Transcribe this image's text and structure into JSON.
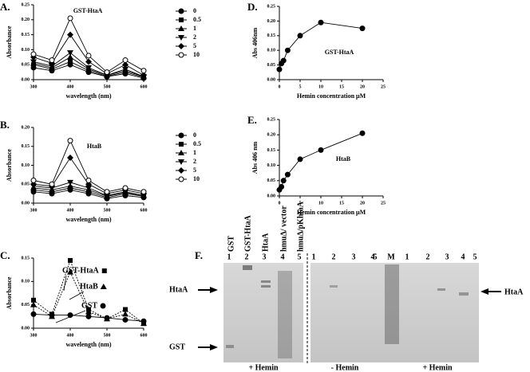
{
  "chart_data": [
    {
      "type": "line",
      "panel": "A.",
      "title": "GST-HtaA",
      "xlabel": "wavelength (nm)",
      "ylabel": "Absorbance",
      "x": [
        300,
        350,
        400,
        450,
        500,
        550,
        600
      ],
      "xlim": [
        300,
        600
      ],
      "xticks": [
        300,
        400,
        500,
        600
      ],
      "ylim": [
        0,
        0.25
      ],
      "yticks": [
        {
          "value": 0,
          "label": "0.00"
        },
        {
          "value": 0.05,
          "label": "0.05"
        },
        {
          "value": 0.1,
          "label": "0.10"
        },
        {
          "value": 0.15,
          "label": "0.15"
        },
        {
          "value": 0.2,
          "label": "0.20"
        },
        {
          "value": 0.25,
          "label": "0.25"
        }
      ],
      "legend": "right",
      "series": [
        {
          "name": "0",
          "color": "#000000",
          "marker": "circle",
          "values": [
            0.04,
            0.03,
            0.05,
            0.025,
            0.01,
            0.02,
            0.005
          ]
        },
        {
          "name": "0.5",
          "color": "#000000",
          "marker": "square",
          "values": [
            0.05,
            0.035,
            0.06,
            0.03,
            0.012,
            0.025,
            0.008
          ]
        },
        {
          "name": "1",
          "color": "#000000",
          "marker": "triangle",
          "values": [
            0.055,
            0.04,
            0.075,
            0.035,
            0.015,
            0.03,
            0.01
          ]
        },
        {
          "name": "2",
          "color": "#000000",
          "marker": "triangle-down",
          "values": [
            0.06,
            0.045,
            0.09,
            0.04,
            0.015,
            0.035,
            0.01
          ]
        },
        {
          "name": "5",
          "color": "#000000",
          "marker": "diamond",
          "values": [
            0.075,
            0.055,
            0.15,
            0.06,
            0.02,
            0.05,
            0.015
          ]
        },
        {
          "name": "10",
          "color": "#000000",
          "marker": "circle-open",
          "values": [
            0.085,
            0.065,
            0.205,
            0.08,
            0.025,
            0.065,
            0.03
          ]
        }
      ]
    },
    {
      "type": "line",
      "panel": "B.",
      "title": "HtaB",
      "xlabel": "wavelength (nm)",
      "ylabel": "Absorbance",
      "x": [
        300,
        350,
        400,
        450,
        500,
        550,
        600
      ],
      "xlim": [
        300,
        600
      ],
      "xticks": [
        300,
        400,
        500,
        600
      ],
      "ylim": [
        0,
        0.2
      ],
      "yticks": [
        {
          "value": 0,
          "label": "0.00"
        },
        {
          "value": 0.05,
          "label": "0.05"
        },
        {
          "value": 0.1,
          "label": "0.10"
        },
        {
          "value": 0.15,
          "label": "0.15"
        },
        {
          "value": 0.2,
          "label": "0.20"
        }
      ],
      "legend": "right",
      "series": [
        {
          "name": "0",
          "color": "#000000",
          "marker": "circle",
          "values": [
            0.03,
            0.025,
            0.035,
            0.025,
            0.012,
            0.02,
            0.015
          ]
        },
        {
          "name": "0.5",
          "color": "#000000",
          "marker": "square",
          "values": [
            0.035,
            0.03,
            0.04,
            0.03,
            0.015,
            0.025,
            0.018
          ]
        },
        {
          "name": "1",
          "color": "#000000",
          "marker": "triangle",
          "values": [
            0.04,
            0.035,
            0.045,
            0.035,
            0.018,
            0.028,
            0.02
          ]
        },
        {
          "name": "2",
          "color": "#000000",
          "marker": "triangle-down",
          "values": [
            0.045,
            0.04,
            0.055,
            0.04,
            0.02,
            0.03,
            0.02
          ]
        },
        {
          "name": "5",
          "color": "#000000",
          "marker": "diamond",
          "values": [
            0.05,
            0.045,
            0.12,
            0.05,
            0.025,
            0.035,
            0.025
          ]
        },
        {
          "name": "10",
          "color": "#000000",
          "marker": "circle-open",
          "values": [
            0.06,
            0.05,
            0.165,
            0.06,
            0.03,
            0.04,
            0.03
          ]
        }
      ]
    },
    {
      "type": "line",
      "panel": "C.",
      "xlabel": "wavelength (nm)",
      "ylabel": "Absorbance",
      "x": [
        300,
        350,
        400,
        450,
        500,
        550,
        600
      ],
      "xlim": [
        300,
        600
      ],
      "xticks": [
        300,
        400,
        500,
        600
      ],
      "ylim": [
        0,
        0.15
      ],
      "yticks": [
        {
          "value": 0,
          "label": "0.00"
        },
        {
          "value": 0.05,
          "label": "0.05"
        },
        {
          "value": 0.1,
          "label": "0.10"
        },
        {
          "value": 0.15,
          "label": "0.15"
        }
      ],
      "legend": "inline",
      "series": [
        {
          "name": "GST-HtaA",
          "color": "#000000",
          "marker": "square",
          "values": [
            0.06,
            0.03,
            0.145,
            0.04,
            0.02,
            0.04,
            0.01
          ]
        },
        {
          "name": "HtaB",
          "color": "#000000",
          "marker": "triangle",
          "values": [
            0.05,
            0.025,
            0.12,
            0.035,
            0.02,
            0.03,
            0.01
          ]
        },
        {
          "name": "GST",
          "color": "#000000",
          "marker": "circle",
          "values": [
            0.03,
            0.028,
            0.028,
            0.025,
            0.022,
            0.018,
            0.015
          ]
        }
      ]
    },
    {
      "type": "line",
      "panel": "D.",
      "title": "GST-HtaA",
      "xlabel": "Hemin concentration μM",
      "ylabel": "Abs 406nm",
      "x": [
        0,
        0.5,
        1,
        2,
        5,
        10,
        20
      ],
      "xlim": [
        0,
        25
      ],
      "xticks": [
        0,
        5,
        10,
        15,
        20,
        25
      ],
      "ylim": [
        0,
        0.25
      ],
      "yticks": [
        {
          "value": 0,
          "label": "0.00"
        },
        {
          "value": 0.05,
          "label": "0.05"
        },
        {
          "value": 0.1,
          "label": "0.10"
        },
        {
          "value": 0.15,
          "label": "0.15"
        },
        {
          "value": 0.2,
          "label": "0.20"
        },
        {
          "value": 0.25,
          "label": "0.25"
        }
      ],
      "series": [
        {
          "color": "#000000",
          "marker": "circle",
          "values": [
            0.035,
            0.055,
            0.065,
            0.1,
            0.15,
            0.195,
            0.175
          ]
        }
      ]
    },
    {
      "type": "line",
      "panel": "E.",
      "title": "HtaB",
      "xlabel": "Hemin concentration μM",
      "ylabel": "Abs 406 nm",
      "x": [
        0,
        0.5,
        1,
        2,
        5,
        10,
        20
      ],
      "xlim": [
        0,
        25
      ],
      "xticks": [
        0,
        5,
        10,
        15,
        20,
        25
      ],
      "ylim": [
        0,
        0.25
      ],
      "yticks": [
        {
          "value": 0,
          "label": "0.00"
        },
        {
          "value": 0.05,
          "label": "0.05"
        },
        {
          "value": 0.1,
          "label": "0.10"
        },
        {
          "value": 0.15,
          "label": "0.15"
        },
        {
          "value": 0.2,
          "label": "0.20"
        },
        {
          "value": 0.25,
          "label": "0.25"
        }
      ],
      "series": [
        {
          "color": "#000000",
          "marker": "circle",
          "values": [
            0.02,
            0.03,
            0.05,
            0.07,
            0.12,
            0.15,
            0.205
          ]
        }
      ]
    }
  ],
  "gel": {
    "panel": "F.",
    "lane_titles": [
      "GST",
      "GST-HtaA",
      "HtaA",
      "hmuΔ/ vector",
      "hmuΔ/pKhtaA"
    ],
    "lanes_1": [
      "1",
      "2",
      "3",
      "4",
      "5"
    ],
    "lanes_2": [
      "1",
      "2",
      "3",
      "4",
      "5"
    ],
    "marker_lane": "M",
    "lanes_3": [
      "1",
      "2",
      "3",
      "4",
      "5"
    ],
    "left_labels": [
      "HtaA",
      "GST"
    ],
    "right_label": "HtaA",
    "conditions": [
      "+ Hemin",
      "- Hemin",
      "+ Hemin"
    ]
  }
}
